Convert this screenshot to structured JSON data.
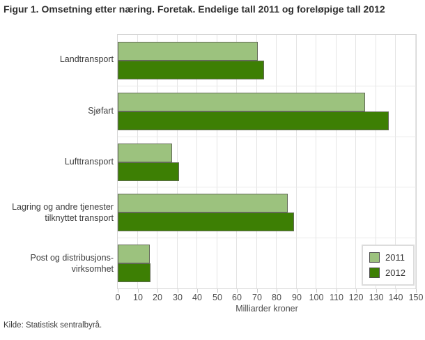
{
  "title": "Figur 1. Omsetning etter næring. Foretak. Endelige tall 2011 og foreløpige tall 2012",
  "source": "Kilde: Statistisk sentralbyrå.",
  "chart_data": {
    "type": "bar",
    "orientation": "horizontal",
    "title": "Figur 1. Omsetning etter næring. Foretak. Endelige tall 2011 og foreløpige tall 2012",
    "categories": [
      "Landtransport",
      "Sjøfart",
      "Lufttransport",
      "Lagring og andre tjenester\ntilknyttet transport",
      "Post og distribusjons-\nvirksomhet"
    ],
    "series": [
      {
        "name": "2011",
        "color": "#9cc27e",
        "values": [
          70.5,
          124.5,
          27.5,
          85.5,
          16
        ]
      },
      {
        "name": "2012",
        "color": "#3d7f04",
        "values": [
          73.5,
          136.5,
          31,
          88.5,
          16.5
        ]
      }
    ],
    "xlabel": "Milliarder kroner",
    "xlim": [
      0,
      150
    ],
    "xticks": [
      0,
      10,
      20,
      30,
      40,
      50,
      60,
      70,
      80,
      90,
      100,
      110,
      120,
      130,
      140,
      150
    ],
    "grid": true,
    "legend_position": "bottom-right",
    "legend_items": [
      "2011",
      "2012"
    ]
  }
}
